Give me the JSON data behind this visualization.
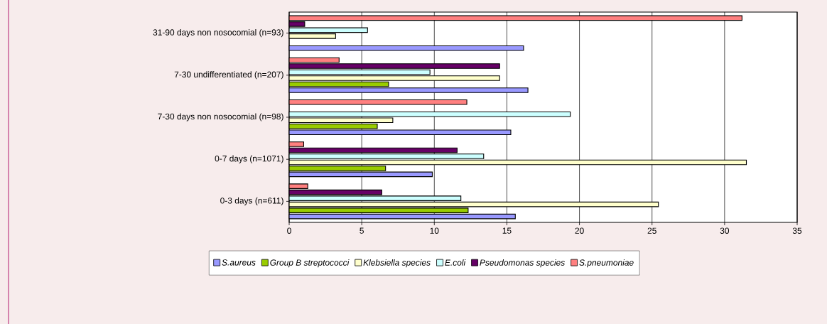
{
  "chart_data": {
    "type": "bar",
    "orientation": "horizontal",
    "categories": [
      "31-90 days non nosocomial (n=93)",
      "7-30 undifferentiated (n=207)",
      "7-30 days non nosocomial (n=98)",
      "0-7 days (n=1071)",
      "0-3 days (n=611)"
    ],
    "series": [
      {
        "name": "S.aureus",
        "color": "#9999ff",
        "values": [
          16.15,
          16.45,
          15.27,
          9.86,
          15.58
        ]
      },
      {
        "name": "Group B streptococci",
        "color": "#99cc00",
        "values": [
          null,
          6.85,
          6.07,
          6.64,
          12.33
        ]
      },
      {
        "name": "Klebsiella species",
        "color": "#ffffcc",
        "values": [
          3.2,
          14.5,
          7.14,
          31.5,
          25.44
        ]
      },
      {
        "name": "E.coli",
        "color": "#ccffff",
        "values": [
          5.4,
          9.7,
          19.37,
          13.4,
          11.83
        ]
      },
      {
        "name": "Pseudomonas species",
        "color": "#660066",
        "values": [
          1.07,
          14.5,
          null,
          11.57,
          6.38
        ]
      },
      {
        "name": "S.pneumoniae",
        "color": "#ff8080",
        "values": [
          31.2,
          3.44,
          12.24,
          1.0,
          1.28
        ]
      }
    ],
    "xlim": [
      0,
      35
    ],
    "xticks": [
      0,
      5,
      10,
      15,
      20,
      25,
      30,
      35
    ],
    "grid": "x",
    "legend": "bottom"
  }
}
